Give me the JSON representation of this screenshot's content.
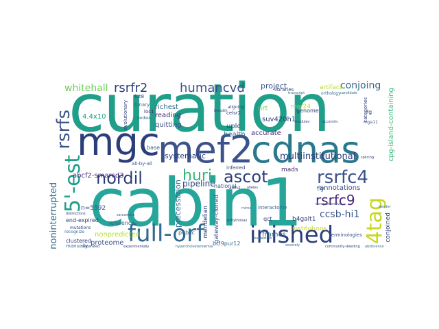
{
  "cloud": {
    "colors": {
      "teal": "#1f9e89",
      "navy": "#2c3e7a",
      "indigo": "#3b528b",
      "purple": "#482878",
      "dark": "#440154",
      "green": "#35b779",
      "lime": "#6ece58",
      "yellow": "#b5de2b",
      "gold": "#c8d820",
      "blue": "#31688e",
      "cyan": "#26828e"
    },
    "words": {
      "w01": "curation",
      "w02": "cabin1",
      "w03": "mgc",
      "w04": "mef2",
      "w05": "cdnas",
      "w06": "full-orf",
      "w07": "inished",
      "w08": "5'-est",
      "w09": "4tag",
      "w10": "rsrfs",
      "w11": "nordil",
      "w12": "huri",
      "w13": "ascot",
      "w14": "rsrfc4",
      "w15": "rsrfc9",
      "w16": "rsrfr2",
      "w17": "humancvd",
      "w18": "whitehall",
      "w19": "conjoing",
      "w20": "project",
      "w21": "multiinstitutional",
      "w22": "ccsb-hi1",
      "w23": "noninterrupted",
      "w24": "proteome",
      "w25": "nonpredicted",
      "w26": "frames",
      "w27": "pipeline",
      "w28": "precessation",
      "w29": "systematic",
      "w30": "annotations",
      "w31": "richest",
      "w32": "reading",
      "w33": "quitting",
      "w34": "uplc",
      "w35": "health",
      "w36": "accurate",
      "w37": "suv420h1",
      "w38": "nrt",
      "w39": "mg/24",
      "w40": "4.4x10",
      "w41": "abcf2-smarcd3",
      "w42": "n=5592",
      "w43": "end-expired",
      "w44": "reference",
      "w45": "clustered",
      "w46": "public",
      "w47": "mendelian",
      "w48": "gateway-cloned",
      "w49": "national",
      "w50": "b4galt1",
      "w51": "fly",
      "w52": "mads",
      "w53": "bcl9pur12",
      "w54": "conjoined",
      "w55": "cpg-island-containing",
      "w56": "artifact",
      "w57": "institutions",
      "w58": "genome",
      "w59": "base",
      "w60": "qct",
      "w61": "manually",
      "w62": "inferred",
      "w63": "interactome",
      "w64": "libraries",
      "w65": "terminologies",
      "w66": "categories",
      "w67": "orthology",
      "w68": "evolutionary",
      "w69": "all-by-all",
      "w70": "celsr2",
      "w71": "binary",
      "w72": "aligning",
      "w73": "loc1",
      "w74": "fut8",
      "w75": "bodies",
      "w76": "mutations",
      "w77": "recognize",
      "w78": "aldh2",
      "w79": "severely",
      "w80": "arrhythmias",
      "w81": "sarcomere",
      "w82": "distinctions",
      "w83": "mirna",
      "w84": "alleles",
      "w85": "nucleotide",
      "w86": "modules",
      "w87": "experimentally",
      "w88": "hypercholesterolemia",
      "w89": "separated",
      "w90": "comprehensive",
      "w91": "community-dwelling",
      "w92": "abstinence",
      "w93": "breadth",
      "w94": "transcript",
      "w95": "eccentric",
      "w96": "candidate",
      "w97": "splicing",
      "w98": "mga11",
      "w99": "rg",
      "w100": "gender"
    }
  }
}
